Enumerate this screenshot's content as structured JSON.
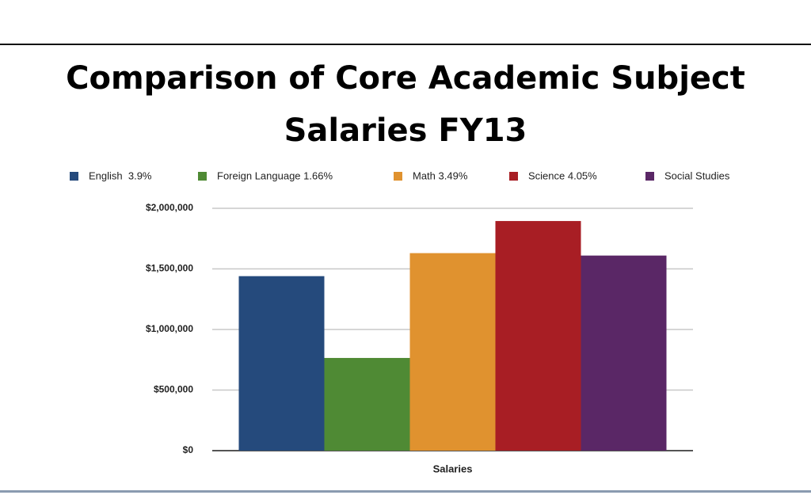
{
  "chart_data": {
    "type": "bar",
    "title": "Comparison of Core Academic Subject Salaries FY13",
    "categories": [
      "Salaries"
    ],
    "series": [
      {
        "name": "English  3.9%",
        "color": "#254a7c",
        "values": [
          1440000
        ]
      },
      {
        "name": "Foreign Language 1.66%",
        "color": "#4f8a34",
        "values": [
          765000
        ]
      },
      {
        "name": "Math 3.49%",
        "color": "#e0922f",
        "values": [
          1630000
        ]
      },
      {
        "name": "Science 4.05%",
        "color": "#a81e24",
        "values": [
          1895000
        ]
      },
      {
        "name": "Social Studies",
        "color": "#5a2766",
        "values": [
          1610000
        ]
      }
    ],
    "ylim": [
      0,
      2000000
    ],
    "yticks": [
      {
        "value": 0,
        "label": "$0"
      },
      {
        "value": 500000,
        "label": "$500,000"
      },
      {
        "value": 1000000,
        "label": "$1,000,000"
      },
      {
        "value": 1500000,
        "label": "$1,500,000"
      },
      {
        "value": 2000000,
        "label": "$2,000,000"
      }
    ],
    "grid": true,
    "legend": "top"
  }
}
